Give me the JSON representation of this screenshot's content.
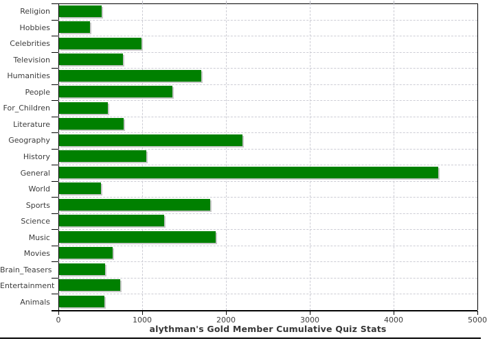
{
  "chart_data": {
    "type": "bar",
    "orientation": "horizontal",
    "title": "alythman's Gold Member Cumulative Quiz Stats",
    "categories": [
      "Religion",
      "Hobbies",
      "Celebrities",
      "Television",
      "Humanities",
      "People",
      "For_Children",
      "Literature",
      "Geography",
      "History",
      "General",
      "World",
      "Sports",
      "Science",
      "Music",
      "Movies",
      "Brain_Teasers",
      "Entertainment",
      "Animals"
    ],
    "values": [
      510,
      365,
      985,
      760,
      1695,
      1350,
      580,
      770,
      2190,
      1040,
      4525,
      500,
      1805,
      1250,
      1870,
      640,
      550,
      730,
      545
    ],
    "xlabel": "",
    "ylabel": "",
    "xlim": [
      0,
      5000
    ],
    "x_tick_values": [
      0,
      1000,
      2000,
      3000,
      4000,
      5000
    ],
    "x_tick_labels": [
      "0",
      "1000",
      "2000",
      "3000",
      "4000",
      "5000"
    ],
    "grid": "dashed-both-axes",
    "legend": "none",
    "bar_color": "#008000",
    "bar_shadow_color": "#c9c9c9",
    "axis_color": "#000000",
    "grid_color": "#ccccd4",
    "text_color": "#3c3c3c",
    "background_color": "#ffffff"
  }
}
